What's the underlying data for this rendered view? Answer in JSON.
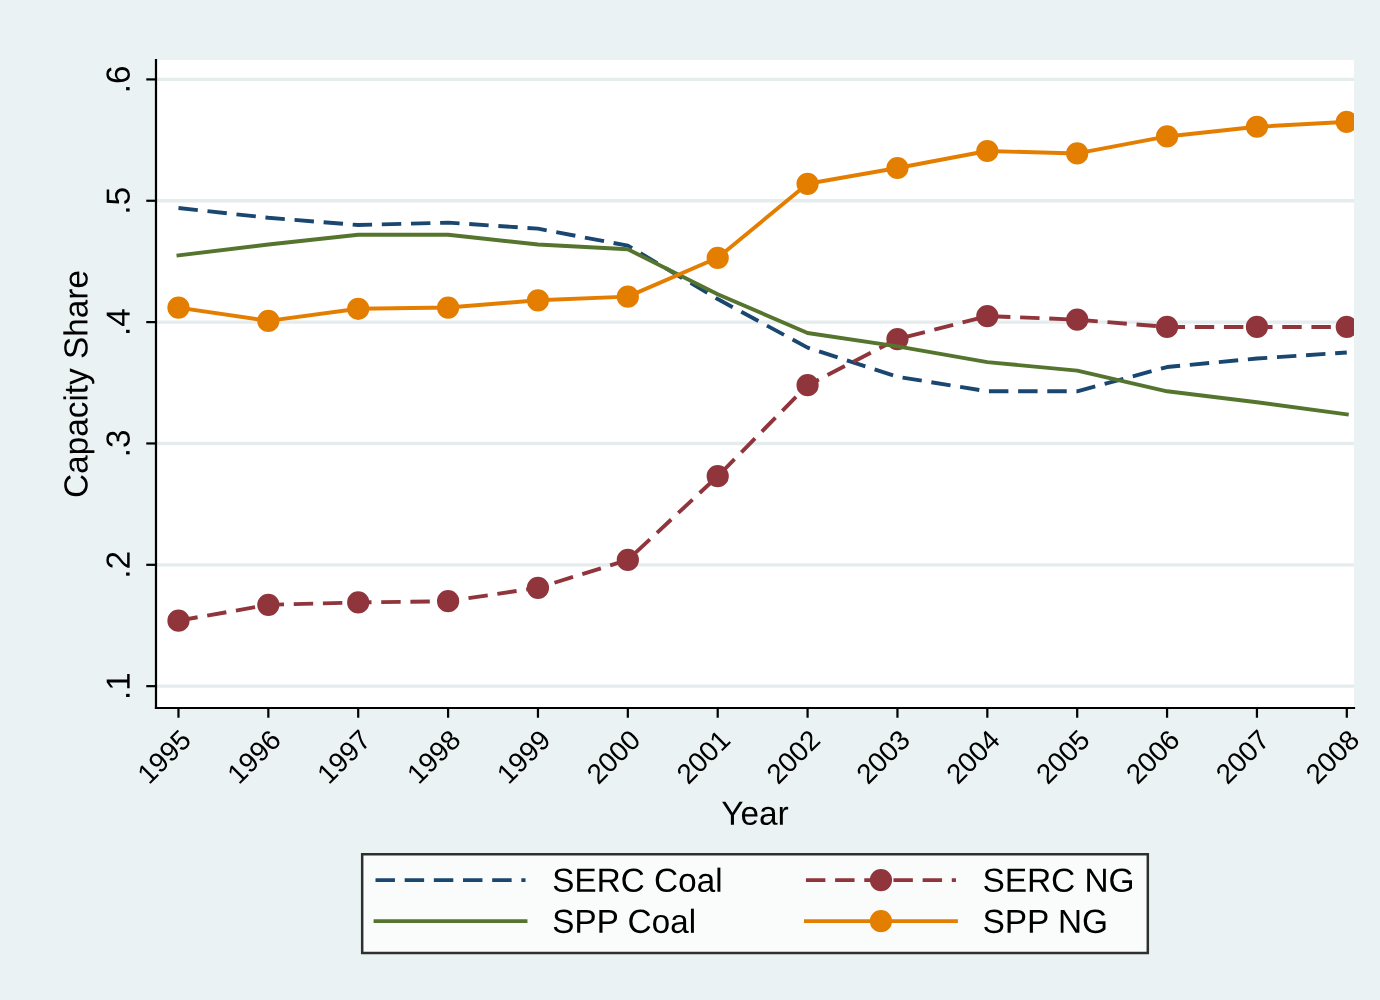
{
  "chart_data": {
    "type": "line",
    "xlabel": "Year",
    "ylabel": "Capacity Share",
    "x": [
      1995,
      1996,
      1997,
      1998,
      1999,
      2000,
      2001,
      2002,
      2003,
      2004,
      2005,
      2006,
      2007,
      2008
    ],
    "series": [
      {
        "name": "SERC Coal",
        "color": "#1a476f",
        "line_style": "dashed",
        "marker": "none",
        "values": [
          0.494,
          0.486,
          0.48,
          0.482,
          0.477,
          0.463,
          0.419,
          0.379,
          0.355,
          0.343,
          0.343,
          0.363,
          0.37,
          0.375
        ]
      },
      {
        "name": "SERC NG",
        "color": "#90353b",
        "line_style": "dashed",
        "marker": "circle",
        "values": [
          0.154,
          0.167,
          0.169,
          0.17,
          0.181,
          0.204,
          0.273,
          0.348,
          0.386,
          0.405,
          0.402,
          0.396,
          0.396,
          0.396
        ]
      },
      {
        "name": "SPP Coal",
        "color": "#55752f",
        "line_style": "solid",
        "marker": "none",
        "values": [
          0.455,
          0.464,
          0.472,
          0.472,
          0.464,
          0.46,
          0.423,
          0.391,
          0.38,
          0.367,
          0.36,
          0.343,
          0.334,
          0.324
        ]
      },
      {
        "name": "SPP NG",
        "color": "#e37e00",
        "line_style": "solid",
        "marker": "circle",
        "values": [
          0.412,
          0.401,
          0.411,
          0.412,
          0.418,
          0.421,
          0.453,
          0.514,
          0.527,
          0.541,
          0.539,
          0.553,
          0.561,
          0.565
        ]
      }
    ],
    "xlim": [
      1994.75,
      2008.08
    ],
    "xticks": [
      1995,
      1996,
      1997,
      1998,
      1999,
      2000,
      2001,
      2002,
      2003,
      2004,
      2005,
      2006,
      2007,
      2008
    ],
    "ylim": [
      0.082,
      0.616
    ],
    "yticks": [
      {
        "value": 0.1,
        "label": ".1"
      },
      {
        "value": 0.2,
        "label": ".2"
      },
      {
        "value": 0.3,
        "label": ".3"
      },
      {
        "value": 0.4,
        "label": ".4"
      },
      {
        "value": 0.5,
        "label": ".5"
      },
      {
        "value": 0.6,
        "label": ".6"
      }
    ],
    "grid": "y",
    "legend": "bottom"
  }
}
